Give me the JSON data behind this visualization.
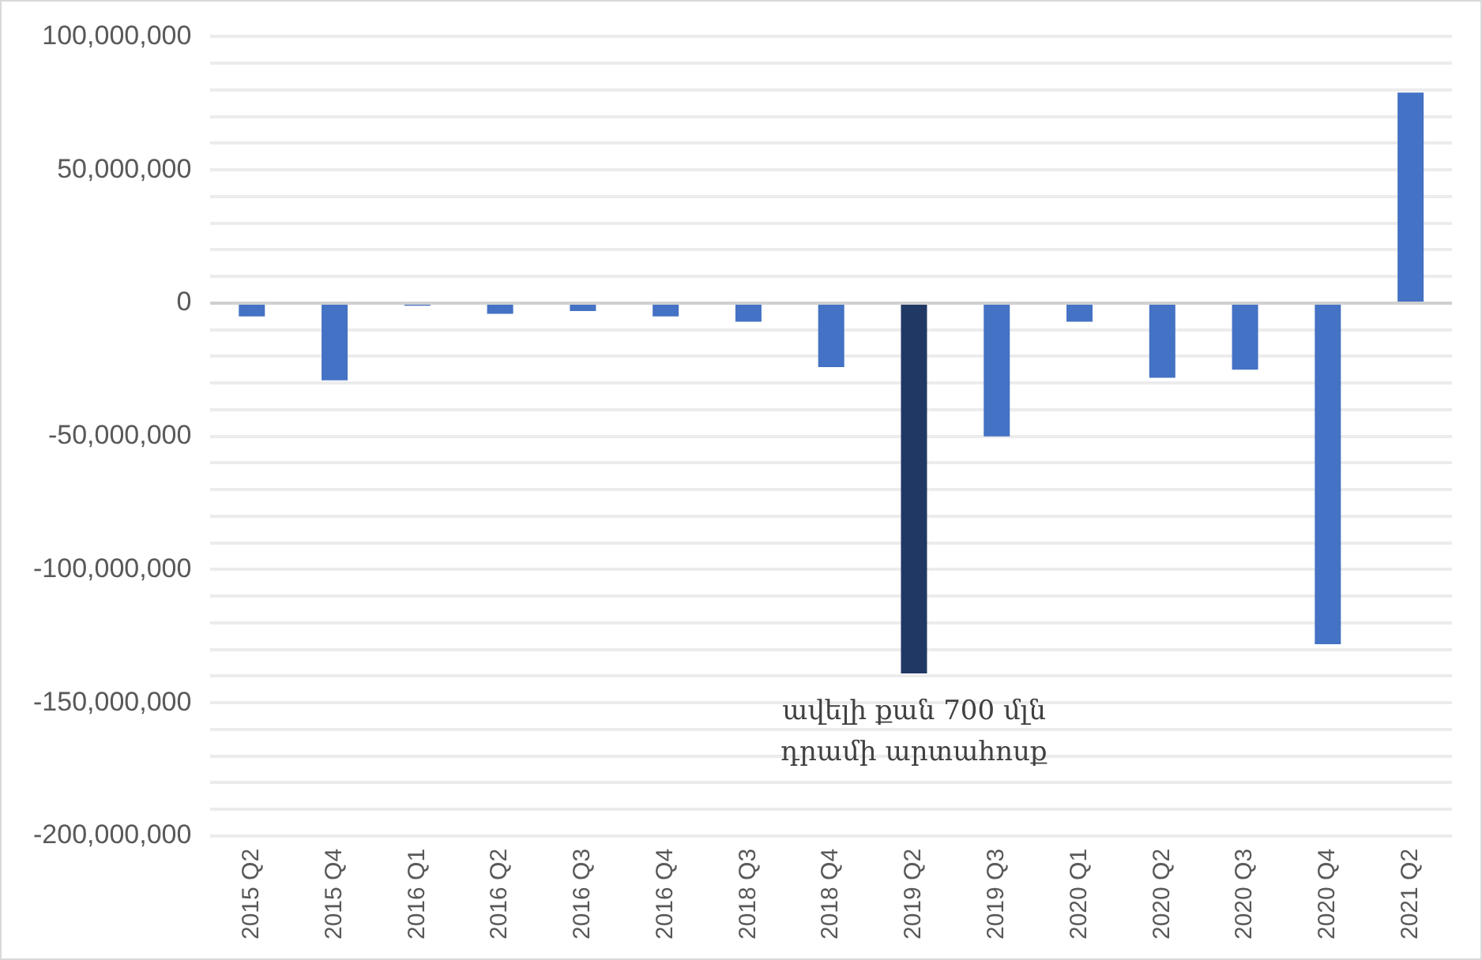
{
  "chart_data": {
    "type": "bar",
    "categories": [
      "2015 Q2",
      "2015 Q4",
      "2016 Q1",
      "2016 Q2",
      "2016 Q3",
      "2016 Q4",
      "2018 Q3",
      "2018 Q4",
      "2019 Q2",
      "2019 Q3",
      "2020 Q1",
      "2020 Q2",
      "2020 Q3",
      "2020 Q4",
      "2021 Q2"
    ],
    "values": [
      -5000000,
      -29000000,
      -1000000,
      -4000000,
      -3000000,
      -5000000,
      -7000000,
      -24000000,
      -139000000,
      -50000000,
      -7000000,
      -28000000,
      -25000000,
      -128000000,
      79000000
    ],
    "colors": [
      "#4472c4",
      "#4472c4",
      "#4472c4",
      "#4472c4",
      "#4472c4",
      "#4472c4",
      "#4472c4",
      "#4472c4",
      "#203864",
      "#4472c4",
      "#4472c4",
      "#4472c4",
      "#4472c4",
      "#4472c4",
      "#4472c4"
    ],
    "ylim": [
      -200000000,
      100000000
    ],
    "yticks": [
      {
        "value": -200000000,
        "label": "-200,000,000"
      },
      {
        "value": -190000000,
        "label": null
      },
      {
        "value": -180000000,
        "label": null
      },
      {
        "value": -170000000,
        "label": null
      },
      {
        "value": -160000000,
        "label": null
      },
      {
        "value": -150000000,
        "label": "-150,000,000"
      },
      {
        "value": -140000000,
        "label": null
      },
      {
        "value": -130000000,
        "label": null
      },
      {
        "value": -120000000,
        "label": null
      },
      {
        "value": -110000000,
        "label": null
      },
      {
        "value": -100000000,
        "label": "-100,000,000"
      },
      {
        "value": -90000000,
        "label": null
      },
      {
        "value": -80000000,
        "label": null
      },
      {
        "value": -70000000,
        "label": null
      },
      {
        "value": -60000000,
        "label": null
      },
      {
        "value": -50000000,
        "label": "-50,000,000"
      },
      {
        "value": -40000000,
        "label": null
      },
      {
        "value": -30000000,
        "label": null
      },
      {
        "value": -20000000,
        "label": null
      },
      {
        "value": -10000000,
        "label": null
      },
      {
        "value": 0,
        "label": "0"
      },
      {
        "value": 10000000,
        "label": null
      },
      {
        "value": 20000000,
        "label": null
      },
      {
        "value": 30000000,
        "label": null
      },
      {
        "value": 40000000,
        "label": null
      },
      {
        "value": 50000000,
        "label": "50,000,000"
      },
      {
        "value": 60000000,
        "label": null
      },
      {
        "value": 70000000,
        "label": null
      },
      {
        "value": 80000000,
        "label": null
      },
      {
        "value": 90000000,
        "label": null
      },
      {
        "value": 100000000,
        "label": "100,000,000"
      }
    ],
    "grid": "y",
    "annotations": [
      {
        "text": "ավելի քան 700 մլն\nդրամի արտահոսք",
        "x": "2019 Q2",
        "y": -139000000
      }
    ]
  }
}
